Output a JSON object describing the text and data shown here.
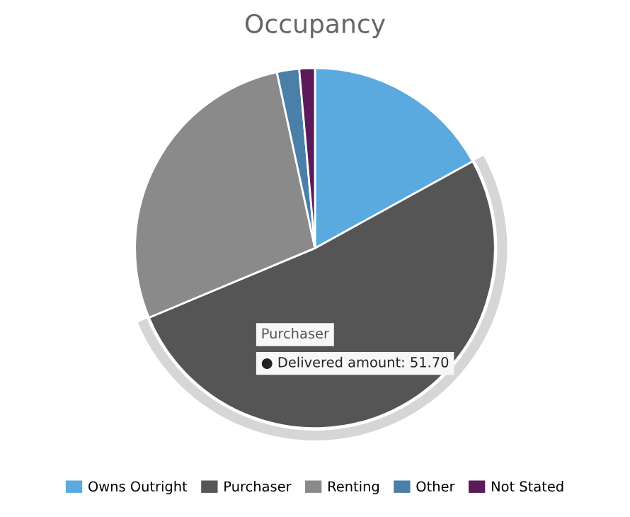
{
  "chart_data": {
    "type": "pie",
    "title": "Occupancy",
    "categories": [
      "Owns Outright",
      "Purchaser",
      "Renting",
      "Other",
      "Not Stated"
    ],
    "values": [
      17.0,
      51.7,
      27.9,
      2.0,
      1.4
    ],
    "colors": [
      "#5aaae0",
      "#555555",
      "#8a8a8a",
      "#4a7fa8",
      "#5b1a5a"
    ],
    "annotations": [
      "Purchaser",
      "● Delivered amount: 51.70"
    ],
    "legend": "bottom"
  }
}
